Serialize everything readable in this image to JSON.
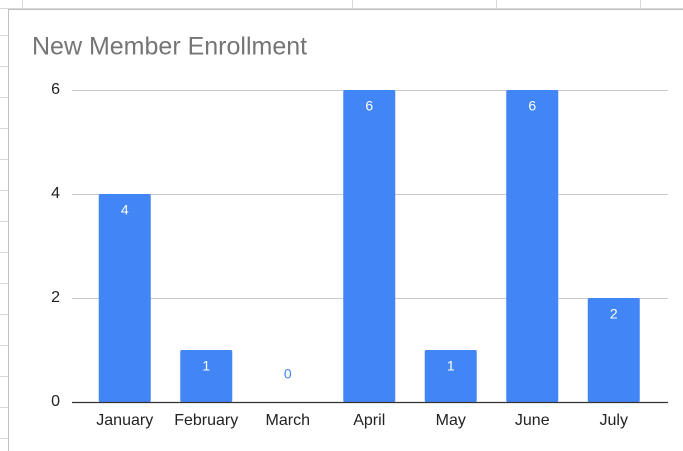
{
  "chart_data": {
    "type": "bar",
    "title": "New Member Enrollment",
    "categories": [
      "January",
      "February",
      "March",
      "April",
      "May",
      "June",
      "July"
    ],
    "values": [
      4,
      1,
      0,
      6,
      1,
      6,
      2
    ],
    "color": "#4285f4",
    "ylim": [
      0,
      6
    ],
    "yticks": [
      0,
      2,
      4,
      6
    ],
    "grid": true
  }
}
